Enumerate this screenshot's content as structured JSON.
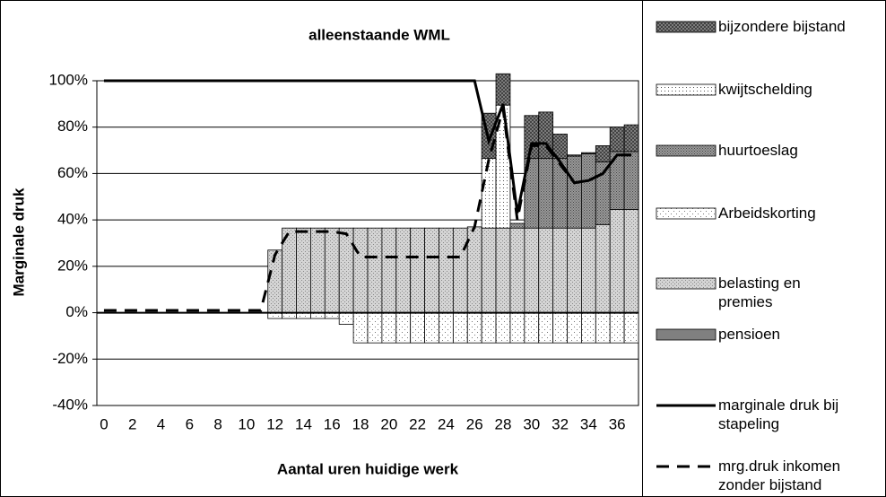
{
  "chart_data": {
    "type": "bar",
    "title": "alleenstaande WML",
    "x_label": "Aantal uren huidige werk",
    "y_label": "Marginale druk",
    "categories": [
      "0",
      null,
      "2",
      null,
      "4",
      null,
      "6",
      null,
      "8",
      null,
      "10",
      null,
      "12",
      null,
      "14",
      null,
      "16",
      null,
      "18",
      null,
      "20",
      null,
      "22",
      null,
      "24",
      null,
      "26",
      null,
      "28",
      null,
      "30",
      null,
      "32",
      null,
      "34",
      null,
      "36",
      null
    ],
    "ylim": [
      -40,
      100
    ],
    "yticks": [
      {
        "value": -40,
        "label": "-40%"
      },
      {
        "value": -20,
        "label": "-20%"
      },
      {
        "value": 0,
        "label": "0%"
      },
      {
        "value": 20,
        "label": "20%"
      },
      {
        "value": 40,
        "label": "40%"
      },
      {
        "value": 60,
        "label": "60%"
      },
      {
        "value": 80,
        "label": "80%"
      },
      {
        "value": 100,
        "label": "100%"
      }
    ],
    "grid": true,
    "stacked": true,
    "series": [
      {
        "name": "bijzondere bijstand",
        "color": "#8c8c8c",
        "values": [
          0,
          0,
          0,
          0,
          0,
          0,
          0,
          0,
          0,
          0,
          0,
          0,
          0,
          0,
          0,
          0,
          0,
          0,
          0,
          0,
          0,
          0,
          0,
          0,
          0,
          0,
          0,
          19.5,
          13.5,
          0,
          18.5,
          20,
          10.5,
          0.5,
          0.5,
          7,
          10.5,
          11.5
        ]
      },
      {
        "name": "kwijtschelding",
        "color": "#ffffff",
        "values": [
          0,
          0,
          0,
          0,
          0,
          0,
          0,
          0,
          0,
          0,
          0,
          0,
          0,
          0,
          0,
          0,
          0,
          0,
          0,
          0,
          0,
          0,
          0,
          0,
          0,
          0,
          0,
          30,
          53,
          0,
          0,
          0,
          0,
          0,
          0,
          0,
          0,
          0
        ]
      },
      {
        "name": "huurtoeslag",
        "color": "#9a9a9a",
        "values": [
          0,
          0,
          0,
          0,
          0,
          0,
          0,
          0,
          0,
          0,
          0,
          0,
          0,
          0,
          0,
          0,
          0,
          0,
          0,
          0,
          0,
          0,
          0,
          0,
          0,
          0,
          0,
          0,
          0,
          2,
          30,
          30,
          30,
          31,
          32,
          27,
          25,
          25
        ]
      },
      {
        "name": "Arbeidskorting",
        "color": "#ffffff",
        "values": [
          0,
          0,
          0,
          0,
          0,
          0,
          0,
          0,
          0,
          0,
          0,
          0,
          -2.5,
          -2.5,
          -2.5,
          -2.5,
          -2.5,
          -5,
          -13,
          -13,
          -13,
          -13,
          -13,
          -13,
          -13,
          -13,
          -13,
          -13,
          -13,
          -13,
          -13,
          -13,
          -13,
          -13,
          -13,
          -13,
          -13,
          -13
        ]
      },
      {
        "name": "belasting en premies",
        "color": "#d4d4d4",
        "values": [
          0,
          0,
          0,
          0,
          0,
          0,
          0,
          0,
          0,
          0,
          0,
          0,
          27,
          36.5,
          36.5,
          36.5,
          36.5,
          36.5,
          36.5,
          36.5,
          36.5,
          36.5,
          36.5,
          36.5,
          36.5,
          36.5,
          37,
          36.5,
          36.5,
          36.5,
          36.5,
          36.5,
          36.5,
          36.5,
          36.5,
          38,
          44.5,
          44.5
        ]
      },
      {
        "name": "pensioen",
        "color": "#808080",
        "values": [
          0,
          0,
          0,
          0,
          0,
          0,
          0,
          0,
          0,
          0,
          0,
          0,
          0,
          0,
          0,
          0,
          0,
          0,
          0,
          0,
          0,
          0,
          0,
          0,
          0,
          0,
          0,
          0,
          0,
          0,
          0,
          0,
          0,
          0,
          0,
          0,
          0,
          0
        ]
      }
    ],
    "lines": [
      {
        "name": "marginale druk bij stapeling",
        "color": "#000000",
        "dash": "solid",
        "values": [
          100,
          100,
          100,
          100,
          100,
          100,
          100,
          100,
          100,
          100,
          100,
          100,
          100,
          100,
          100,
          100,
          100,
          100,
          100,
          100,
          100,
          100,
          100,
          100,
          100,
          100,
          100,
          74,
          90,
          43,
          73,
          73,
          65,
          56,
          57,
          60,
          68,
          68
        ]
      },
      {
        "name": "mrg.druk inkomen zonder bijstand",
        "color": "#000000",
        "dash": "dashed",
        "values": [
          1,
          1,
          1,
          1,
          1,
          1,
          1,
          1,
          1,
          1,
          1,
          1,
          25,
          35,
          35,
          35,
          35,
          34,
          24,
          24,
          24,
          24,
          24,
          24,
          24,
          24,
          37,
          66,
          88,
          40,
          72,
          72,
          64,
          56,
          57,
          60,
          68,
          68
        ]
      }
    ]
  }
}
